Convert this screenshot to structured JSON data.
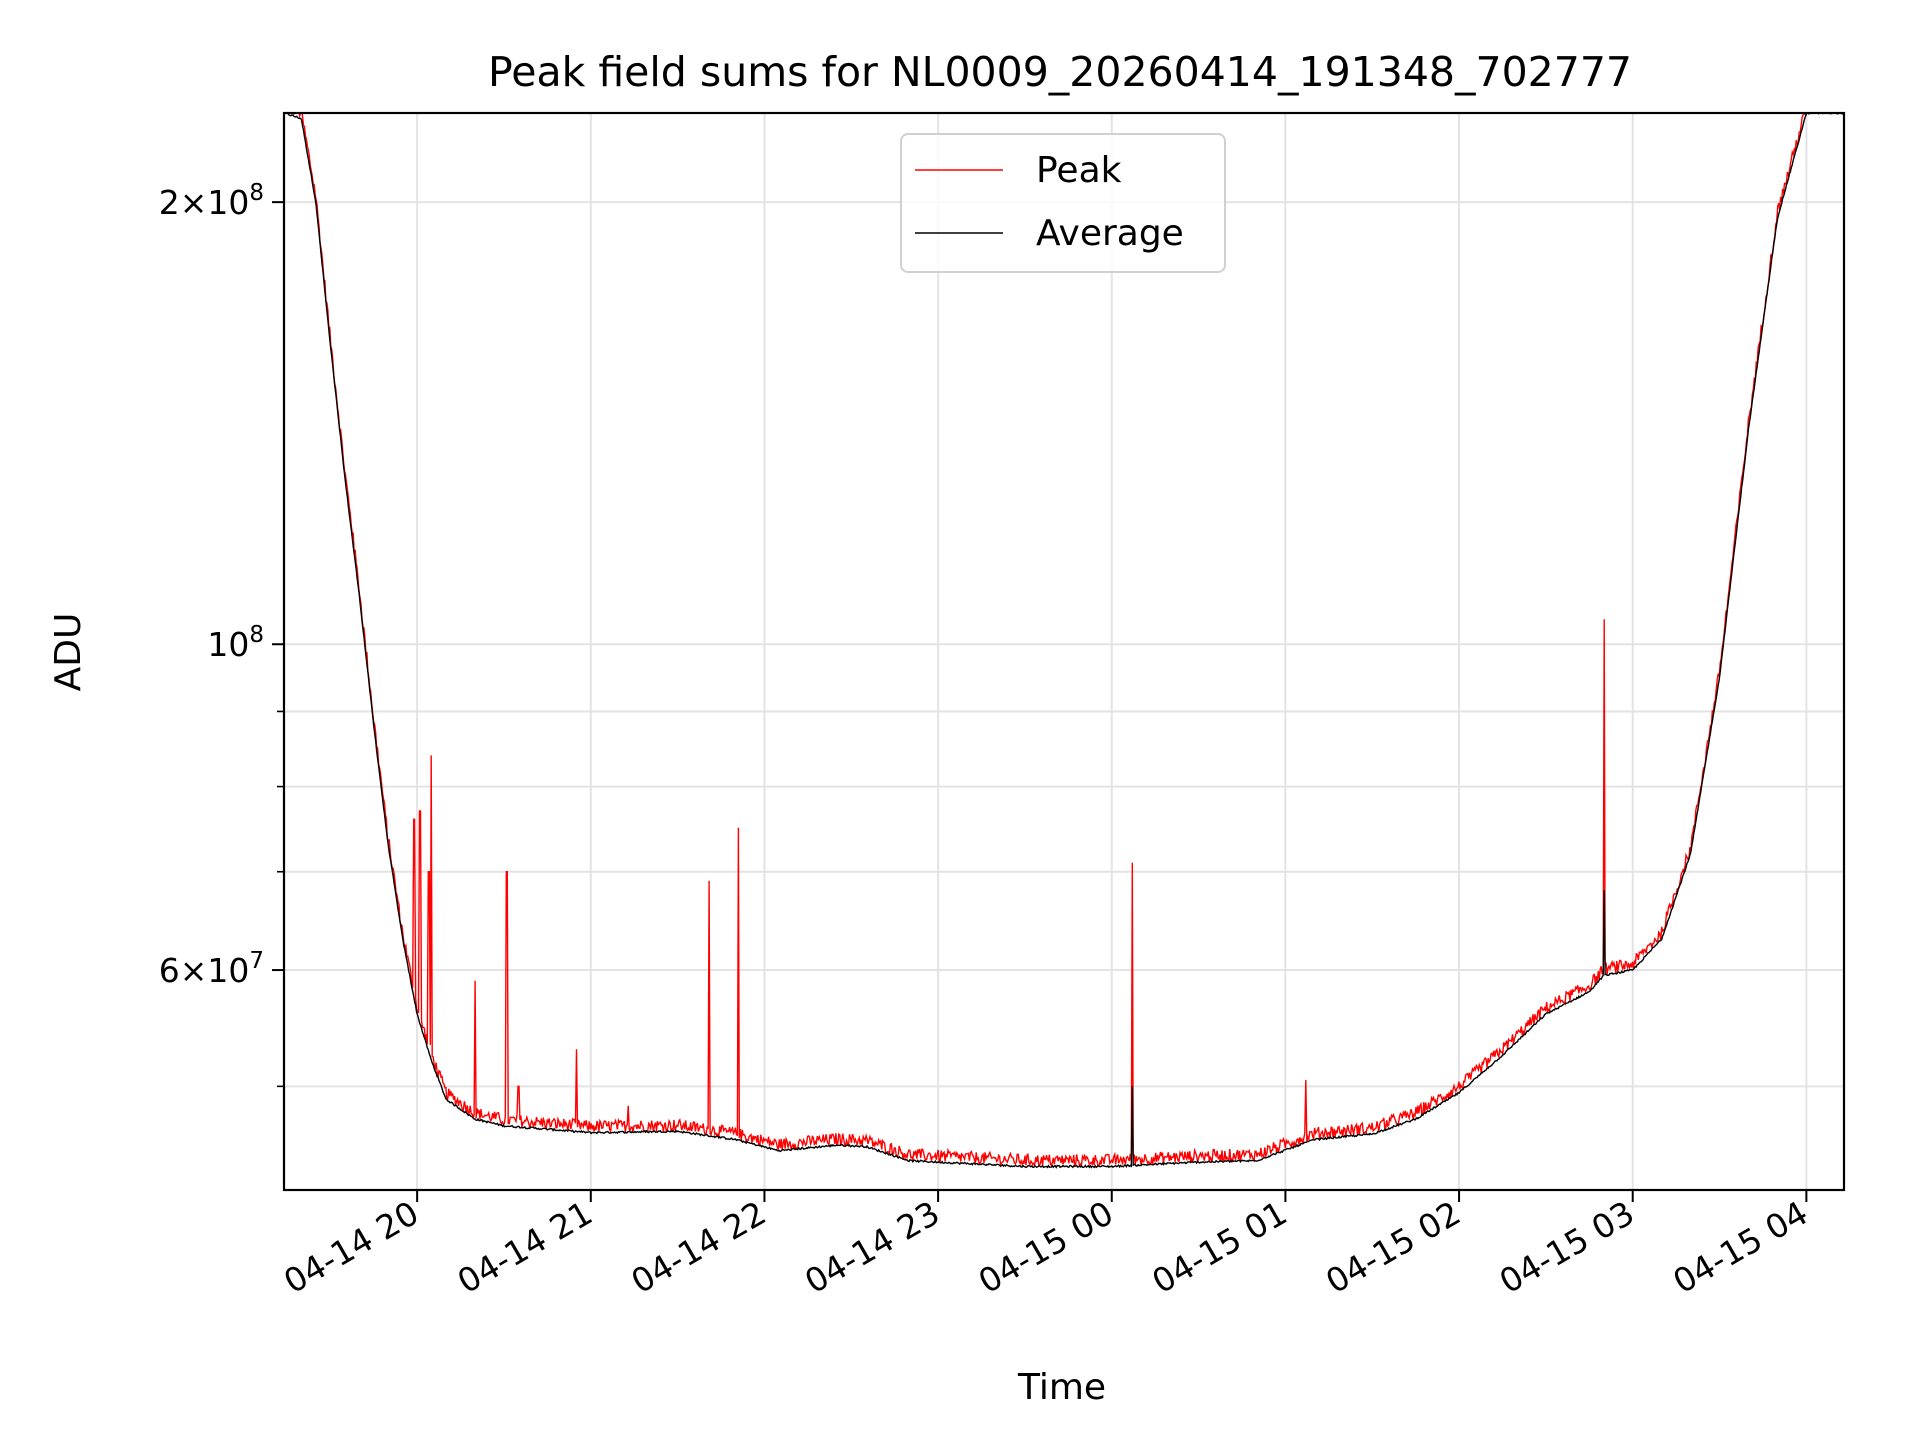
{
  "chart_data": {
    "type": "line",
    "title": "Peak field sums for NL0009_20260414_191348_702777",
    "xlabel": "Time",
    "ylabel": "ADU",
    "y_scale": "log",
    "ylim": [
      42500000,
      230000000
    ],
    "xlim": [
      "2026-04-14 19:14",
      "2026-04-15 04:13"
    ],
    "grid": true,
    "legend_position": "top-center",
    "x_ticks": [
      {
        "t": "2026-04-14 20:00",
        "label": "04-14 20"
      },
      {
        "t": "2026-04-14 21:00",
        "label": "04-14 21"
      },
      {
        "t": "2026-04-14 22:00",
        "label": "04-14 22"
      },
      {
        "t": "2026-04-14 23:00",
        "label": "04-14 23"
      },
      {
        "t": "2026-04-15 00:00",
        "label": "04-15 00"
      },
      {
        "t": "2026-04-15 01:00",
        "label": "04-15 01"
      },
      {
        "t": "2026-04-15 02:00",
        "label": "04-15 02"
      },
      {
        "t": "2026-04-15 03:00",
        "label": "04-15 03"
      },
      {
        "t": "2026-04-15 04:00",
        "label": "04-15 04"
      }
    ],
    "y_ticks": [
      {
        "value": 60000000,
        "base": "6",
        "exp": "7"
      },
      {
        "value": 100000000,
        "base": "",
        "exp": "8"
      },
      {
        "value": 200000000,
        "base": "2",
        "exp": "8"
      }
    ],
    "y_minor_ticks": [
      50000000,
      70000000,
      80000000,
      90000000
    ],
    "series": [
      {
        "name": "Average",
        "color": "#000000",
        "points": [
          [
            "2026-04-14 19:14",
            230000000
          ],
          [
            "2026-04-14 19:20",
            228000000
          ],
          [
            "2026-04-14 19:25",
            200000000
          ],
          [
            "2026-04-14 19:30",
            160000000
          ],
          [
            "2026-04-14 19:35",
            130000000
          ],
          [
            "2026-04-14 19:40",
            108000000
          ],
          [
            "2026-04-14 19:45",
            88000000
          ],
          [
            "2026-04-14 19:50",
            73000000
          ],
          [
            "2026-04-14 19:55",
            63000000
          ],
          [
            "2026-04-14 20:00",
            56000000
          ],
          [
            "2026-04-14 20:05",
            52000000
          ],
          [
            "2026-04-14 20:10",
            49000000
          ],
          [
            "2026-04-14 20:20",
            47500000
          ],
          [
            "2026-04-14 20:30",
            47000000
          ],
          [
            "2026-04-14 21:00",
            46500000
          ],
          [
            "2026-04-14 21:30",
            46600000
          ],
          [
            "2026-04-14 21:50",
            46000000
          ],
          [
            "2026-04-14 22:05",
            45200000
          ],
          [
            "2026-04-14 22:25",
            45600000
          ],
          [
            "2026-04-14 22:35",
            45500000
          ],
          [
            "2026-04-14 22:50",
            44500000
          ],
          [
            "2026-04-14 23:30",
            44100000
          ],
          [
            "2026-04-15 00:00",
            44100000
          ],
          [
            "2026-04-15 00:30",
            44400000
          ],
          [
            "2026-04-15 00:50",
            44500000
          ],
          [
            "2026-04-15 01:10",
            46000000
          ],
          [
            "2026-04-15 01:30",
            46400000
          ],
          [
            "2026-04-15 01:45",
            47500000
          ],
          [
            "2026-04-15 02:00",
            49500000
          ],
          [
            "2026-04-15 02:15",
            52500000
          ],
          [
            "2026-04-15 02:30",
            56000000
          ],
          [
            "2026-04-15 02:45",
            58000000
          ],
          [
            "2026-04-15 02:50",
            59500000
          ],
          [
            "2026-04-15 03:00",
            60000000
          ],
          [
            "2026-04-15 03:10",
            63000000
          ],
          [
            "2026-04-15 03:20",
            72000000
          ],
          [
            "2026-04-15 03:30",
            95000000
          ],
          [
            "2026-04-15 03:40",
            140000000
          ],
          [
            "2026-04-15 03:50",
            195000000
          ],
          [
            "2026-04-15 04:00",
            230000000
          ],
          [
            "2026-04-15 04:13",
            230000000
          ]
        ],
        "spikes": [
          [
            "2026-04-15 00:07",
            50000000
          ],
          [
            "2026-04-15 02:50",
            68000000
          ]
        ]
      },
      {
        "name": "Peak",
        "color": "#ff0000",
        "noise_fraction": 0.015,
        "spikes": [
          [
            "2026-04-14 19:38",
            119000000
          ],
          [
            "2026-04-14 19:59",
            76000000
          ],
          [
            "2026-04-14 20:01",
            77000000
          ],
          [
            "2026-04-14 20:04",
            70000000
          ],
          [
            "2026-04-14 20:05",
            84000000
          ],
          [
            "2026-04-14 20:20",
            59000000
          ],
          [
            "2026-04-14 20:31",
            70000000
          ],
          [
            "2026-04-14 20:35",
            50000000
          ],
          [
            "2026-04-14 20:55",
            53000000
          ],
          [
            "2026-04-14 21:13",
            48500000
          ],
          [
            "2026-04-14 21:41",
            69000000
          ],
          [
            "2026-04-14 21:51",
            75000000
          ],
          [
            "2026-04-15 00:07",
            71000000
          ],
          [
            "2026-04-15 01:07",
            50500000
          ],
          [
            "2026-04-15 02:50",
            104000000
          ]
        ]
      }
    ]
  }
}
